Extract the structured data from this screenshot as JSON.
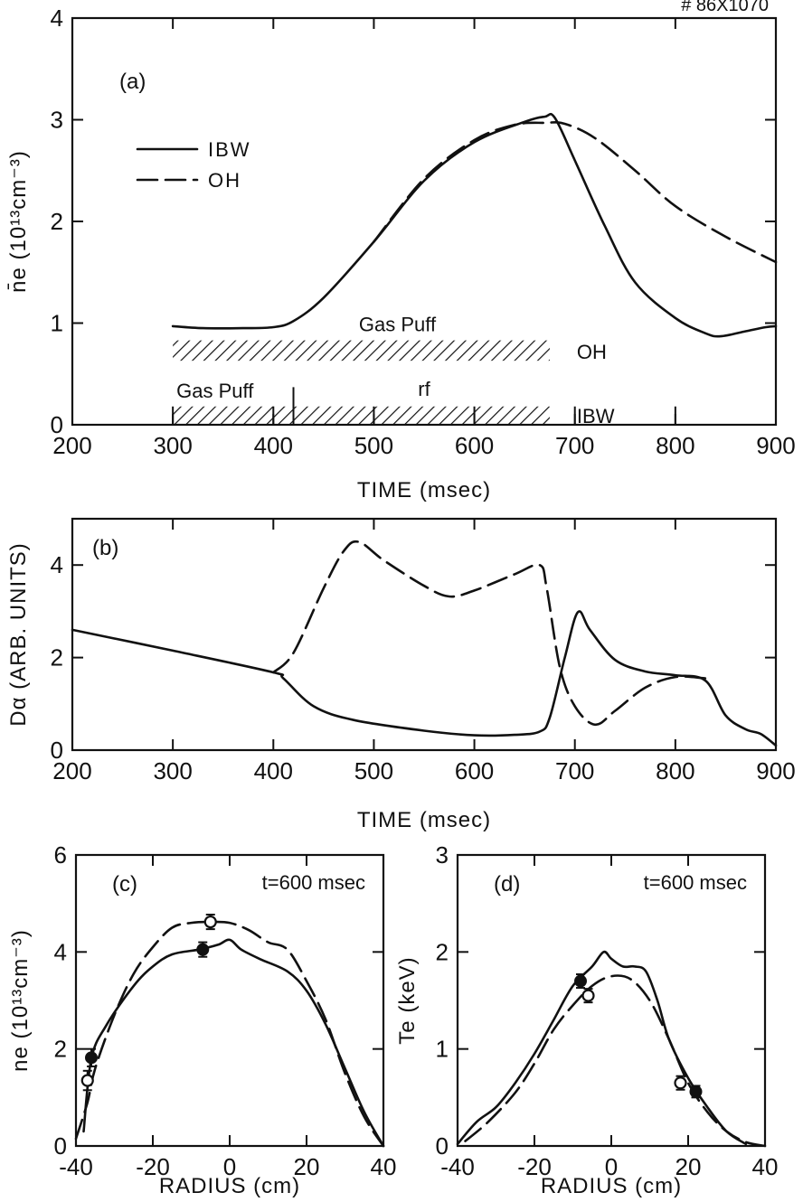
{
  "corner_text": "# 86X1070",
  "chart_data": [
    {
      "id": "a",
      "type": "line",
      "panel_label": "(a)",
      "xlabel": "TIME (msec)",
      "ylabel": "n̄e (10¹³cm⁻³)",
      "xlim": [
        200,
        900
      ],
      "ylim": [
        0,
        4
      ],
      "x_ticks": [
        200,
        300,
        400,
        500,
        600,
        700,
        800,
        900
      ],
      "y_ticks": [
        0,
        1,
        2,
        3,
        4
      ],
      "legend": {
        "placement": "upper-left",
        "entries": [
          {
            "name": "IBW",
            "style": "solid"
          },
          {
            "name": "OH",
            "style": "dashed"
          }
        ]
      },
      "series": [
        {
          "name": "IBW",
          "style": "solid",
          "points": [
            [
              300,
              0.97
            ],
            [
              330,
              0.95
            ],
            [
              370,
              0.95
            ],
            [
              400,
              0.96
            ],
            [
              420,
              1.02
            ],
            [
              450,
              1.25
            ],
            [
              500,
              1.8
            ],
            [
              550,
              2.4
            ],
            [
              600,
              2.78
            ],
            [
              650,
              2.98
            ],
            [
              670,
              3.03
            ],
            [
              680,
              3.02
            ],
            [
              700,
              2.6
            ],
            [
              730,
              1.95
            ],
            [
              760,
              1.4
            ],
            [
              800,
              1.05
            ],
            [
              830,
              0.9
            ],
            [
              845,
              0.87
            ],
            [
              870,
              0.92
            ],
            [
              890,
              0.96
            ],
            [
              900,
              0.97
            ]
          ]
        },
        {
          "name": "OH",
          "style": "dashed",
          "points": [
            [
              500,
              1.8
            ],
            [
              550,
              2.42
            ],
            [
              600,
              2.8
            ],
            [
              640,
              2.95
            ],
            [
              670,
              2.97
            ],
            [
              690,
              2.96
            ],
            [
              720,
              2.82
            ],
            [
              760,
              2.5
            ],
            [
              800,
              2.15
            ],
            [
              850,
              1.85
            ],
            [
              900,
              1.6
            ]
          ]
        }
      ],
      "bars": [
        {
          "label": "Gas Puff",
          "side_label": "OH",
          "x_range": [
            300,
            675
          ],
          "y_range": [
            0.63,
            0.83
          ]
        },
        {
          "label": "Gas Puff",
          "second_label": "rf",
          "side_label": "IBW",
          "x_range": [
            300,
            675
          ],
          "y_range": [
            0.0,
            0.18
          ],
          "split_at": 420
        }
      ],
      "bar_ticks": [
        300,
        400,
        500,
        600
      ],
      "bar_split_marker": {
        "x": 420,
        "y_top": 0.37
      },
      "ibw_ticks": [
        700,
        800
      ]
    },
    {
      "id": "b",
      "type": "line",
      "panel_label": "(b)",
      "xlabel": "TIME (msec)",
      "ylabel": "Dα (ARB. UNITS)",
      "xlim": [
        200,
        900
      ],
      "ylim": [
        0,
        5
      ],
      "x_ticks": [
        200,
        300,
        400,
        500,
        600,
        700,
        800,
        900
      ],
      "y_ticks": [
        0,
        2,
        4
      ],
      "series": [
        {
          "name": "IBW",
          "style": "solid",
          "points": [
            [
              200,
              2.6
            ],
            [
              300,
              2.15
            ],
            [
              400,
              1.68
            ],
            [
              410,
              1.55
            ],
            [
              440,
              0.95
            ],
            [
              480,
              0.65
            ],
            [
              550,
              0.42
            ],
            [
              600,
              0.32
            ],
            [
              640,
              0.33
            ],
            [
              665,
              0.4
            ],
            [
              675,
              0.7
            ],
            [
              690,
              2.0
            ],
            [
              703,
              2.98
            ],
            [
              715,
              2.6
            ],
            [
              740,
              1.95
            ],
            [
              770,
              1.7
            ],
            [
              800,
              1.62
            ],
            [
              830,
              1.5
            ],
            [
              850,
              0.75
            ],
            [
              870,
              0.45
            ],
            [
              885,
              0.35
            ],
            [
              900,
              0.1
            ]
          ]
        },
        {
          "name": "OH",
          "style": "dashed",
          "points": [
            [
              400,
              1.68
            ],
            [
              420,
              2.1
            ],
            [
              450,
              3.5
            ],
            [
              470,
              4.3
            ],
            [
              485,
              4.5
            ],
            [
              510,
              4.1
            ],
            [
              550,
              3.55
            ],
            [
              575,
              3.32
            ],
            [
              600,
              3.45
            ],
            [
              640,
              3.8
            ],
            [
              665,
              4.0
            ],
            [
              672,
              3.5
            ],
            [
              685,
              1.8
            ],
            [
              700,
              0.95
            ],
            [
              720,
              0.55
            ],
            [
              740,
              0.85
            ],
            [
              770,
              1.35
            ],
            [
              800,
              1.58
            ],
            [
              830,
              1.55
            ]
          ]
        }
      ]
    },
    {
      "id": "c",
      "type": "line",
      "panel_label": "(c)",
      "annotation": "t=600 msec",
      "xlabel": "RADIUS (cm)",
      "ylabel": "ne (10¹³cm⁻³)",
      "xlim": [
        -40,
        40
      ],
      "ylim": [
        0,
        6
      ],
      "x_ticks": [
        -40,
        -20,
        0,
        20,
        40
      ],
      "y_ticks": [
        0,
        2,
        4,
        6
      ],
      "series": [
        {
          "name": "IBW",
          "style": "solid",
          "points": [
            [
              -38,
              0.3
            ],
            [
              -36,
              1.8
            ],
            [
              -32,
              2.5
            ],
            [
              -25,
              3.3
            ],
            [
              -20,
              3.7
            ],
            [
              -15,
              3.95
            ],
            [
              -8,
              4.05
            ],
            [
              -3,
              4.15
            ],
            [
              0,
              4.25
            ],
            [
              3,
              4.05
            ],
            [
              8,
              3.85
            ],
            [
              15,
              3.6
            ],
            [
              20,
              3.2
            ],
            [
              25,
              2.5
            ],
            [
              30,
              1.6
            ],
            [
              35,
              0.7
            ],
            [
              40,
              0.0
            ]
          ]
        },
        {
          "name": "OH",
          "style": "dashed",
          "points": [
            [
              -40,
              0.15
            ],
            [
              -37,
              0.9
            ],
            [
              -35,
              1.6
            ],
            [
              -30,
              2.7
            ],
            [
              -25,
              3.55
            ],
            [
              -20,
              4.1
            ],
            [
              -15,
              4.5
            ],
            [
              -10,
              4.6
            ],
            [
              -5,
              4.62
            ],
            [
              0,
              4.6
            ],
            [
              5,
              4.45
            ],
            [
              10,
              4.2
            ],
            [
              15,
              4.05
            ],
            [
              20,
              3.4
            ],
            [
              25,
              2.6
            ],
            [
              30,
              1.5
            ],
            [
              35,
              0.6
            ],
            [
              40,
              0.0
            ]
          ]
        }
      ],
      "markers": [
        {
          "style": "filled",
          "x": -36,
          "y": 1.82,
          "err": 0.18
        },
        {
          "style": "open",
          "x": -37,
          "y": 1.35,
          "err": 0.2
        },
        {
          "style": "filled",
          "x": -7,
          "y": 4.05,
          "err": 0.15
        },
        {
          "style": "open",
          "x": -5,
          "y": 4.62,
          "err": 0.15
        }
      ]
    },
    {
      "id": "d",
      "type": "line",
      "panel_label": "(d)",
      "annotation": "t=600 msec",
      "xlabel": "RADIUS (cm)",
      "ylabel": "Te (keV)",
      "xlim": [
        -40,
        40
      ],
      "ylim": [
        0,
        3
      ],
      "x_ticks": [
        -40,
        -20,
        0,
        20,
        40
      ],
      "y_ticks": [
        0,
        1,
        2,
        3
      ],
      "series": [
        {
          "name": "IBW",
          "style": "solid",
          "points": [
            [
              -40,
              0.02
            ],
            [
              -35,
              0.25
            ],
            [
              -30,
              0.4
            ],
            [
              -25,
              0.65
            ],
            [
              -20,
              0.95
            ],
            [
              -15,
              1.3
            ],
            [
              -10,
              1.65
            ],
            [
              -5,
              1.85
            ],
            [
              -2,
              2.0
            ],
            [
              0,
              1.93
            ],
            [
              3,
              1.85
            ],
            [
              6,
              1.85
            ],
            [
              9,
              1.8
            ],
            [
              12,
              1.5
            ],
            [
              15,
              1.1
            ],
            [
              20,
              0.7
            ],
            [
              25,
              0.4
            ],
            [
              30,
              0.15
            ],
            [
              35,
              0.02
            ]
          ]
        },
        {
          "name": "OH",
          "style": "dashed",
          "points": [
            [
              -38,
              0.05
            ],
            [
              -32,
              0.25
            ],
            [
              -25,
              0.55
            ],
            [
              -20,
              0.85
            ],
            [
              -15,
              1.2
            ],
            [
              -10,
              1.45
            ],
            [
              -5,
              1.65
            ],
            [
              0,
              1.75
            ],
            [
              5,
              1.72
            ],
            [
              10,
              1.5
            ],
            [
              15,
              1.1
            ],
            [
              20,
              0.65
            ],
            [
              25,
              0.35
            ],
            [
              30,
              0.15
            ],
            [
              35,
              0.04
            ],
            [
              40,
              0.0
            ]
          ]
        }
      ],
      "markers": [
        {
          "style": "filled",
          "x": -8,
          "y": 1.7,
          "err": 0.07
        },
        {
          "style": "open",
          "x": -6,
          "y": 1.55,
          "err": 0.07
        },
        {
          "style": "open",
          "x": 18,
          "y": 0.65,
          "err": 0.07
        },
        {
          "style": "filled",
          "x": 22,
          "y": 0.56,
          "err": 0.06
        }
      ]
    }
  ]
}
